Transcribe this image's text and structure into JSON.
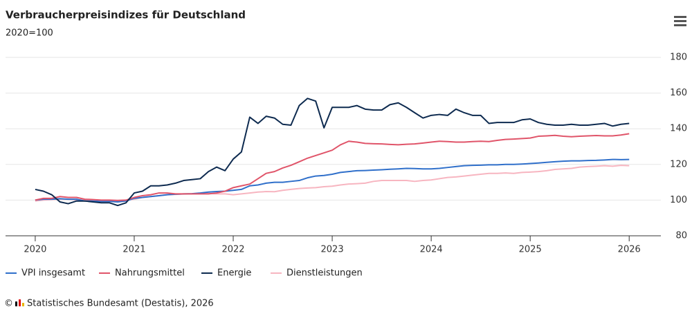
{
  "chart_data": {
    "type": "line",
    "title": "Verbraucherpreisindizes für Deutschland",
    "subtitle": "2020=100",
    "x": [
      2020,
      2020.083,
      2020.167,
      2020.25,
      2020.333,
      2020.417,
      2020.5,
      2020.583,
      2020.667,
      2020.75,
      2020.833,
      2020.917,
      2021,
      2021.083,
      2021.167,
      2021.25,
      2021.333,
      2021.417,
      2021.5,
      2021.583,
      2021.667,
      2021.75,
      2021.833,
      2021.917,
      2022,
      2022.083,
      2022.167,
      2022.25,
      2022.333,
      2022.417,
      2022.5,
      2022.583,
      2022.667,
      2022.75,
      2022.833,
      2022.917,
      2023,
      2023.083,
      2023.167,
      2023.25,
      2023.333,
      2023.417,
      2023.5,
      2023.583,
      2023.667,
      2023.75,
      2023.833,
      2023.917,
      2024,
      2024.083,
      2024.167,
      2024.25,
      2024.333,
      2024.417,
      2024.5,
      2024.583,
      2024.667,
      2024.75,
      2024.833,
      2024.917,
      2025,
      2025.083,
      2025.167,
      2025.25,
      2025.333,
      2025.417,
      2025.5,
      2025.583,
      2025.667,
      2025.75,
      2025.833,
      2025.917,
      2026
    ],
    "series": [
      {
        "name": "VPI insgesamt",
        "color": "#2f6fca",
        "values": [
          100,
          100.5,
          100.5,
          100.8,
          100.5,
          100.5,
          99.5,
          99.5,
          99.3,
          99.3,
          99,
          99.5,
          101,
          101.5,
          102,
          102.5,
          103,
          103.3,
          103.5,
          103.6,
          104,
          104.5,
          104.8,
          105,
          105.5,
          106,
          108,
          108.5,
          109.5,
          110,
          110,
          110.5,
          111,
          112.5,
          113.5,
          113.8,
          114.5,
          115.5,
          116,
          116.5,
          116.6,
          116.8,
          117,
          117.3,
          117.5,
          117.8,
          117.7,
          117.5,
          117.5,
          117.8,
          118.3,
          118.8,
          119.3,
          119.5,
          119.6,
          119.8,
          119.8,
          120,
          120,
          120.2,
          120.5,
          120.8,
          121.2,
          121.5,
          121.8,
          122,
          122,
          122.2,
          122.3,
          122.5,
          122.8,
          122.7,
          122.8
        ]
      },
      {
        "name": "Nahrungsmittel",
        "color": "#e05469",
        "values": [
          100,
          101,
          101,
          102,
          101.5,
          101.5,
          100.5,
          100.3,
          100,
          100,
          99.8,
          100,
          101.5,
          102.5,
          103,
          104,
          104,
          103.5,
          103.5,
          103.5,
          103.5,
          103.5,
          104,
          105,
          107,
          108,
          109,
          112,
          115,
          116,
          118,
          119.5,
          121.5,
          123.5,
          125,
          126.5,
          128,
          131,
          133,
          132.5,
          131.8,
          131.6,
          131.5,
          131.2,
          131,
          131.3,
          131.5,
          132,
          132.5,
          133,
          132.8,
          132.5,
          132.5,
          132.8,
          133,
          132.8,
          133.5,
          134,
          134.2,
          134.5,
          134.8,
          135.8,
          136,
          136.3,
          135.8,
          135.5,
          135.8,
          136,
          136.2,
          136,
          136,
          136.5,
          137.2
        ]
      },
      {
        "name": "Energie",
        "color": "#0d2a4f",
        "values": [
          106,
          105,
          103,
          99,
          98,
          99.5,
          99.5,
          99,
          98.5,
          98.5,
          97,
          98.5,
          104,
          105,
          108,
          108,
          108.5,
          109.5,
          111,
          111.5,
          112,
          116,
          118.5,
          116.5,
          123,
          127,
          146.5,
          143,
          147,
          146,
          142.5,
          142,
          153,
          157,
          155.5,
          140.5,
          152,
          152,
          152,
          153,
          151,
          150.5,
          150.5,
          153.5,
          154.5,
          152,
          149,
          146,
          147.5,
          148,
          147.5,
          151,
          149,
          147.5,
          147.5,
          143,
          143.5,
          143.5,
          143.5,
          145,
          145.5,
          143.5,
          142.5,
          142,
          142,
          142.5,
          142,
          142,
          142.5,
          143,
          141.5,
          142.5,
          143
        ]
      },
      {
        "name": "Dienstleistungen",
        "color": "#f7b5c0",
        "values": [
          99.5,
          100,
          100.3,
          100.5,
          100.5,
          100.2,
          100,
          100,
          99.8,
          99.8,
          99.8,
          100,
          100.5,
          101.5,
          102,
          102.5,
          103,
          103.2,
          103.4,
          103.5,
          103.6,
          103.8,
          103.5,
          103.5,
          103,
          103.5,
          104,
          104.5,
          104.8,
          104.7,
          105.5,
          106,
          106.5,
          106.8,
          107,
          107.5,
          107.8,
          108.5,
          109,
          109.2,
          109.5,
          110.5,
          111,
          111,
          111,
          111,
          110.5,
          111,
          111.3,
          112,
          112.7,
          113,
          113.5,
          114,
          114.5,
          115,
          115,
          115.2,
          115,
          115.5,
          115.7,
          116,
          116.5,
          117.2,
          117.5,
          117.8,
          118.5,
          118.8,
          119,
          119.3,
          119,
          119.5,
          119.3
        ]
      }
    ],
    "xlim": [
      2019.7,
      2026.32
    ],
    "xticks": [
      2020,
      2021,
      2022,
      2023,
      2024,
      2025,
      2026
    ],
    "ylim": [
      80,
      180
    ],
    "yticks": [
      80,
      100,
      120,
      140,
      160,
      180
    ],
    "grid": true,
    "copyright": "©",
    "source": "Statistisches Bundesamt (Destatis), 2026"
  }
}
